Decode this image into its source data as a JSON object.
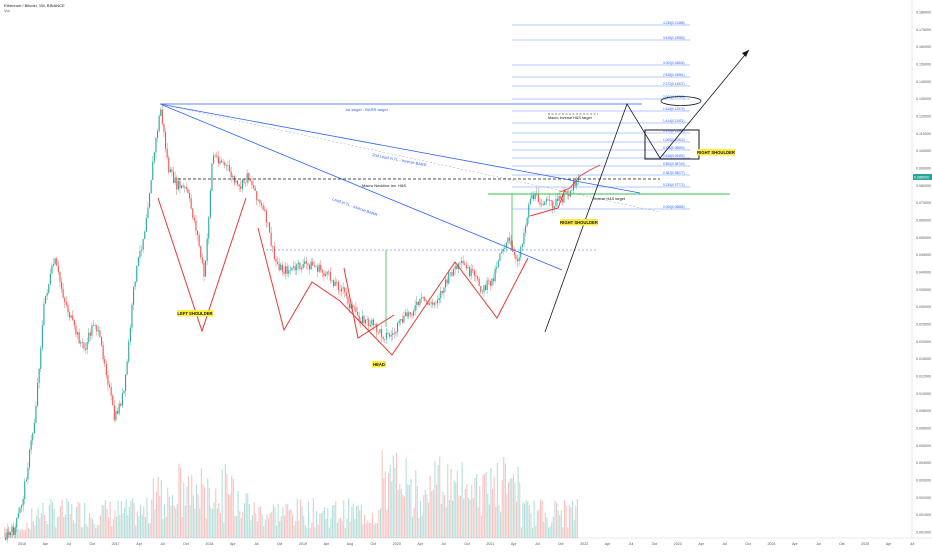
{
  "header": {
    "title": "Ethereum / Bitcoin, 1W, BINANCE",
    "volume_label": "Vol"
  },
  "colors": {
    "up": "#26a69a",
    "down": "#ef5350",
    "pattern": "#e53935",
    "trend": "#2962ff",
    "green_line": "#2ec44b",
    "neckline": "#131722",
    "fib": "#2962ff",
    "label_bg": "#ffeb3b"
  },
  "axes": {
    "x_ticks": [
      "2016",
      "Apr",
      "Jul",
      "Oct",
      "2017",
      "Apr",
      "Jul",
      "Oct",
      "2018",
      "Apr",
      "Jul",
      "Oct",
      "2019",
      "Apr",
      "Aug",
      "Oct",
      "2020",
      "Apr",
      "Jul",
      "Oct",
      "2021",
      "Apr",
      "Jul",
      "Oct",
      "2022",
      "Apr",
      "Jul",
      "Oct",
      "2023",
      "Apr",
      "Jul",
      "Oct",
      "2024",
      "Apr",
      "Jul",
      "Oct",
      "2025",
      "Apr",
      "Jul"
    ],
    "y_ticks": [
      "0.180000",
      "0.170000",
      "0.160000",
      "0.150000",
      "0.140000",
      "0.130000",
      "0.120000",
      "0.110000",
      "0.100000",
      "0.090000",
      "0.080000",
      "0.070000",
      "0.060000",
      "0.050000",
      "0.045000",
      "0.040000",
      "0.035000",
      "0.030000",
      "0.025000",
      "0.020000",
      "0.015000",
      "0.012000",
      "0.010000",
      "0.008000",
      "0.006000",
      "0.005000",
      "0.004000",
      "0.003000",
      "0.002000",
      "0.001500",
      "0.001000"
    ],
    "current_price": "0.085000"
  },
  "annotations": {
    "left_shoulder": "LEFT SHOULDER",
    "head": "HEAD",
    "right_shoulder_1": "RIGHT SHOULDER",
    "right_shoulder_2": "RIGHT SHOULDER",
    "first_target": "1st target - BARR target",
    "second_lead": "2nd Lead in TL - Inverse BARR",
    "lead_in": "Lead in TL - Inverse BARR",
    "macro_neckline": "Macro Neckline Inv. H&S",
    "macro_target": "Macro Inverse H&S target",
    "inverse_target": "Inverse H&S target"
  },
  "fib_levels": [
    "4.236(0.21488)",
    "3.618(0.19083)",
    "3.000(0.16844)",
    "2.618(0.15561)",
    "2.272(0.14527)",
    "2.000(0.13720)",
    "1.618(0.12574)",
    "1.414(0.11921)",
    "1.272(0.11531)",
    "1.000(0.10512)",
    "0.786(0.09650)",
    "0.618(0.09494)",
    "0.500(0.08740)",
    "0.382(0.08077)",
    "0.236(0.07771)",
    "0.000(0.06885)"
  ],
  "chart_data": {
    "type": "candlestick",
    "symbol": "ETH/BTC",
    "interval": "1W",
    "exchange": "BINANCE",
    "x_range": [
      "2016",
      "2025"
    ],
    "y_range": [
      0.001,
      0.18
    ],
    "scale": "log",
    "closes_path": [
      0.0012,
      0.0025,
      0.0028,
      0.018,
      0.03,
      0.022,
      0.014,
      0.02,
      0.024,
      0.012,
      0.01,
      0.009,
      0.014,
      0.019,
      0.026,
      0.04,
      0.09,
      0.13,
      0.15,
      0.12,
      0.09,
      0.1,
      0.075,
      0.07,
      0.085,
      0.08,
      0.07,
      0.065,
      0.09,
      0.08,
      0.07,
      0.055,
      0.03,
      0.028,
      0.033,
      0.033,
      0.03,
      0.027,
      0.025,
      0.03,
      0.033,
      0.032,
      0.029,
      0.025,
      0.021,
      0.019,
      0.021,
      0.019,
      0.022,
      0.026,
      0.032,
      0.036,
      0.033,
      0.028,
      0.031,
      0.035,
      0.032,
      0.04,
      0.05,
      0.065,
      0.075,
      0.07,
      0.062,
      0.074,
      0.079,
      0.085
    ]
  }
}
